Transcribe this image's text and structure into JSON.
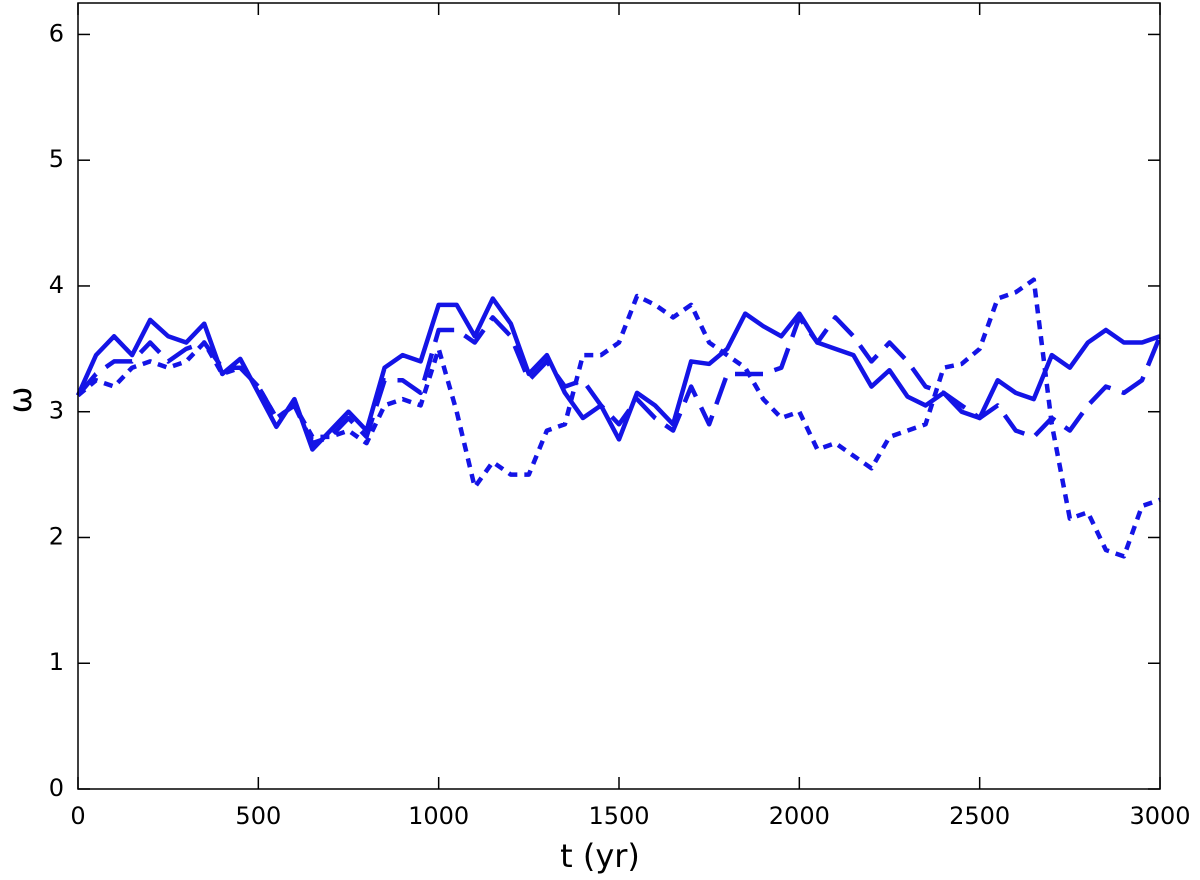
{
  "chart_data": {
    "type": "line",
    "xlabel": "t (yr)",
    "ylabel": "ω",
    "x": [
      0,
      50,
      100,
      150,
      200,
      250,
      300,
      350,
      400,
      450,
      500,
      550,
      600,
      650,
      700,
      750,
      800,
      850,
      900,
      950,
      1000,
      1050,
      1100,
      1150,
      1200,
      1250,
      1300,
      1350,
      1400,
      1450,
      1500,
      1550,
      1600,
      1650,
      1700,
      1750,
      1800,
      1850,
      1900,
      1950,
      2000,
      2050,
      2100,
      2150,
      2200,
      2250,
      2300,
      2350,
      2400,
      2450,
      2500,
      2550,
      2600,
      2650,
      2700,
      2750,
      2800,
      2850,
      2900,
      2950,
      3000
    ],
    "series": [
      {
        "color": "#1414e6",
        "dash": "solid",
        "values": [
          3.13,
          3.45,
          3.6,
          3.45,
          3.73,
          3.6,
          3.55,
          3.7,
          3.3,
          3.42,
          3.15,
          2.88,
          3.1,
          2.7,
          2.85,
          3.0,
          2.85,
          3.35,
          3.45,
          3.4,
          3.85,
          3.85,
          3.6,
          3.9,
          3.7,
          3.3,
          3.45,
          3.15,
          2.95,
          3.05,
          2.78,
          3.15,
          3.05,
          2.9,
          3.4,
          3.38,
          3.5,
          3.78,
          3.68,
          3.6,
          3.78,
          3.55,
          3.5,
          3.45,
          3.2,
          3.33,
          3.12,
          3.05,
          3.15,
          3.0,
          2.95,
          3.25,
          3.15,
          3.1,
          3.45,
          3.35,
          3.55,
          3.65,
          3.55,
          3.55,
          3.6
        ]
      },
      {
        "color": "#1414e6",
        "dash": "dashed",
        "values": [
          3.13,
          3.3,
          3.4,
          3.4,
          3.55,
          3.4,
          3.5,
          3.55,
          3.35,
          3.35,
          3.2,
          2.95,
          3.05,
          2.75,
          2.8,
          2.95,
          2.8,
          3.25,
          3.25,
          3.15,
          3.65,
          3.65,
          3.55,
          3.75,
          3.6,
          3.25,
          3.4,
          3.2,
          3.25,
          3.05,
          2.9,
          3.1,
          2.95,
          2.85,
          3.2,
          2.9,
          3.3,
          3.3,
          3.3,
          3.35,
          3.75,
          3.55,
          3.75,
          3.6,
          3.4,
          3.55,
          3.4,
          3.2,
          3.15,
          3.05,
          2.95,
          3.05,
          2.85,
          2.8,
          2.95,
          2.85,
          3.05,
          3.2,
          3.15,
          3.25,
          3.6
        ]
      },
      {
        "color": "#1414e6",
        "dash": "dotted",
        "values": [
          3.13,
          3.25,
          3.2,
          3.35,
          3.4,
          3.35,
          3.4,
          3.55,
          3.3,
          3.35,
          3.2,
          2.95,
          3.05,
          2.8,
          2.8,
          2.85,
          2.75,
          3.05,
          3.1,
          3.05,
          3.5,
          3.0,
          2.4,
          2.6,
          2.5,
          2.5,
          2.85,
          2.9,
          3.45,
          3.45,
          3.55,
          3.92,
          3.85,
          3.75,
          3.85,
          3.55,
          3.45,
          3.35,
          3.1,
          2.95,
          3.0,
          2.7,
          2.75,
          2.65,
          2.55,
          2.8,
          2.85,
          2.9,
          3.35,
          3.38,
          3.5,
          3.9,
          3.95,
          4.05,
          2.9,
          2.15,
          2.2,
          1.9,
          1.85,
          2.25,
          2.3
        ]
      }
    ],
    "xlim": [
      0,
      3000
    ],
    "xticks": [
      0,
      500,
      1000,
      1500,
      2000,
      2500,
      3000
    ],
    "ylim": [
      0,
      6.25
    ],
    "yticks": [
      0,
      1,
      2,
      3,
      4,
      5,
      6
    ]
  }
}
